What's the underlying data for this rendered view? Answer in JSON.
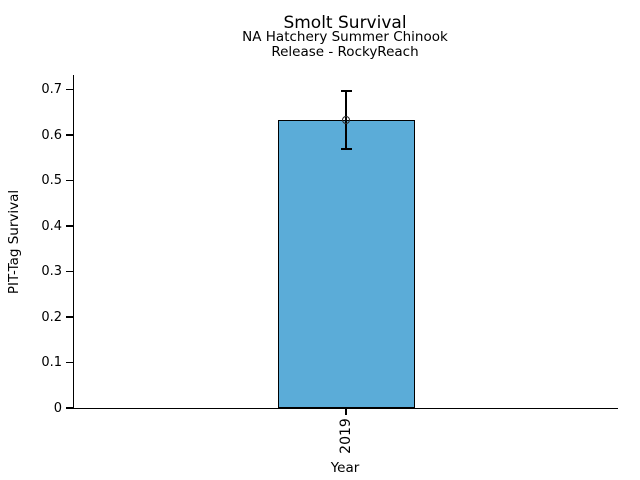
{
  "chart_data": {
    "type": "bar",
    "title": "Smolt Survival",
    "subtitle_line1": "NA Hatchery Summer Chinook",
    "subtitle_line2": "Release - RockyReach",
    "xlabel": "Year",
    "ylabel": "PIT-Tag Survival",
    "categories": [
      "2019"
    ],
    "values": [
      0.633
    ],
    "error_bars": [
      {
        "low": 0.569,
        "high": 0.697
      }
    ],
    "marker": "open-circle",
    "ytick_labels": [
      "0",
      "0.1",
      "0.2",
      "0.3",
      "0.4",
      "0.5",
      "0.6",
      "0.7"
    ],
    "ytick_values": [
      0,
      0.1,
      0.2,
      0.3,
      0.4,
      0.5,
      0.6,
      0.7
    ],
    "ylim": [
      0,
      0.732
    ],
    "grid": false,
    "legend": null,
    "bar_color": "#5BACD8",
    "bar_edge_color": "#000000",
    "text_color": "#000000"
  }
}
